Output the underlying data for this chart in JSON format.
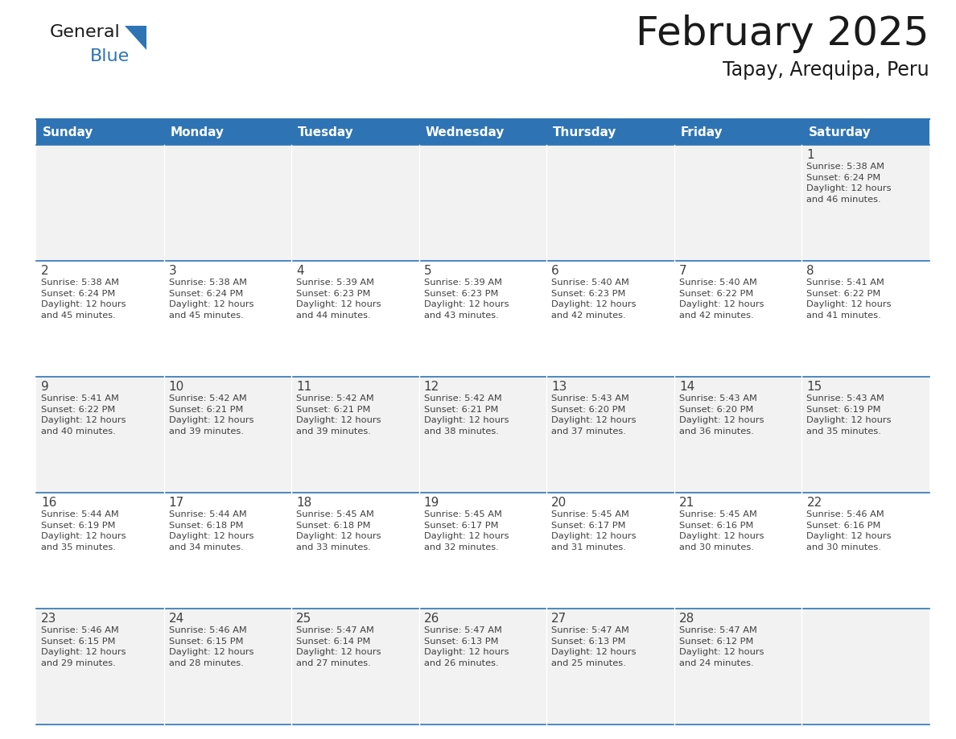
{
  "title": "February 2025",
  "subtitle": "Tapay, Arequipa, Peru",
  "days_header": [
    "Sunday",
    "Monday",
    "Tuesday",
    "Wednesday",
    "Thursday",
    "Friday",
    "Saturday"
  ],
  "header_bg": "#2E74B5",
  "header_text_color": "#FFFFFF",
  "cell_bg_odd": "#F2F2F2",
  "cell_bg_even": "#FFFFFF",
  "border_color": "#2E74B5",
  "text_color": "#404040",
  "day_num_color": "#404040",
  "title_color": "#1A1A1A",
  "general_black": "#1A1A1A",
  "general_blue": "#2E74B5",
  "logo_triangle_color": "#2E74B5",
  "weeks": [
    [
      {
        "day": null,
        "info": ""
      },
      {
        "day": null,
        "info": ""
      },
      {
        "day": null,
        "info": ""
      },
      {
        "day": null,
        "info": ""
      },
      {
        "day": null,
        "info": ""
      },
      {
        "day": null,
        "info": ""
      },
      {
        "day": 1,
        "info": "Sunrise: 5:38 AM\nSunset: 6:24 PM\nDaylight: 12 hours\nand 46 minutes."
      }
    ],
    [
      {
        "day": 2,
        "info": "Sunrise: 5:38 AM\nSunset: 6:24 PM\nDaylight: 12 hours\nand 45 minutes."
      },
      {
        "day": 3,
        "info": "Sunrise: 5:38 AM\nSunset: 6:24 PM\nDaylight: 12 hours\nand 45 minutes."
      },
      {
        "day": 4,
        "info": "Sunrise: 5:39 AM\nSunset: 6:23 PM\nDaylight: 12 hours\nand 44 minutes."
      },
      {
        "day": 5,
        "info": "Sunrise: 5:39 AM\nSunset: 6:23 PM\nDaylight: 12 hours\nand 43 minutes."
      },
      {
        "day": 6,
        "info": "Sunrise: 5:40 AM\nSunset: 6:23 PM\nDaylight: 12 hours\nand 42 minutes."
      },
      {
        "day": 7,
        "info": "Sunrise: 5:40 AM\nSunset: 6:22 PM\nDaylight: 12 hours\nand 42 minutes."
      },
      {
        "day": 8,
        "info": "Sunrise: 5:41 AM\nSunset: 6:22 PM\nDaylight: 12 hours\nand 41 minutes."
      }
    ],
    [
      {
        "day": 9,
        "info": "Sunrise: 5:41 AM\nSunset: 6:22 PM\nDaylight: 12 hours\nand 40 minutes."
      },
      {
        "day": 10,
        "info": "Sunrise: 5:42 AM\nSunset: 6:21 PM\nDaylight: 12 hours\nand 39 minutes."
      },
      {
        "day": 11,
        "info": "Sunrise: 5:42 AM\nSunset: 6:21 PM\nDaylight: 12 hours\nand 39 minutes."
      },
      {
        "day": 12,
        "info": "Sunrise: 5:42 AM\nSunset: 6:21 PM\nDaylight: 12 hours\nand 38 minutes."
      },
      {
        "day": 13,
        "info": "Sunrise: 5:43 AM\nSunset: 6:20 PM\nDaylight: 12 hours\nand 37 minutes."
      },
      {
        "day": 14,
        "info": "Sunrise: 5:43 AM\nSunset: 6:20 PM\nDaylight: 12 hours\nand 36 minutes."
      },
      {
        "day": 15,
        "info": "Sunrise: 5:43 AM\nSunset: 6:19 PM\nDaylight: 12 hours\nand 35 minutes."
      }
    ],
    [
      {
        "day": 16,
        "info": "Sunrise: 5:44 AM\nSunset: 6:19 PM\nDaylight: 12 hours\nand 35 minutes."
      },
      {
        "day": 17,
        "info": "Sunrise: 5:44 AM\nSunset: 6:18 PM\nDaylight: 12 hours\nand 34 minutes."
      },
      {
        "day": 18,
        "info": "Sunrise: 5:45 AM\nSunset: 6:18 PM\nDaylight: 12 hours\nand 33 minutes."
      },
      {
        "day": 19,
        "info": "Sunrise: 5:45 AM\nSunset: 6:17 PM\nDaylight: 12 hours\nand 32 minutes."
      },
      {
        "day": 20,
        "info": "Sunrise: 5:45 AM\nSunset: 6:17 PM\nDaylight: 12 hours\nand 31 minutes."
      },
      {
        "day": 21,
        "info": "Sunrise: 5:45 AM\nSunset: 6:16 PM\nDaylight: 12 hours\nand 30 minutes."
      },
      {
        "day": 22,
        "info": "Sunrise: 5:46 AM\nSunset: 6:16 PM\nDaylight: 12 hours\nand 30 minutes."
      }
    ],
    [
      {
        "day": 23,
        "info": "Sunrise: 5:46 AM\nSunset: 6:15 PM\nDaylight: 12 hours\nand 29 minutes."
      },
      {
        "day": 24,
        "info": "Sunrise: 5:46 AM\nSunset: 6:15 PM\nDaylight: 12 hours\nand 28 minutes."
      },
      {
        "day": 25,
        "info": "Sunrise: 5:47 AM\nSunset: 6:14 PM\nDaylight: 12 hours\nand 27 minutes."
      },
      {
        "day": 26,
        "info": "Sunrise: 5:47 AM\nSunset: 6:13 PM\nDaylight: 12 hours\nand 26 minutes."
      },
      {
        "day": 27,
        "info": "Sunrise: 5:47 AM\nSunset: 6:13 PM\nDaylight: 12 hours\nand 25 minutes."
      },
      {
        "day": 28,
        "info": "Sunrise: 5:47 AM\nSunset: 6:12 PM\nDaylight: 12 hours\nand 24 minutes."
      },
      {
        "day": null,
        "info": ""
      }
    ]
  ]
}
